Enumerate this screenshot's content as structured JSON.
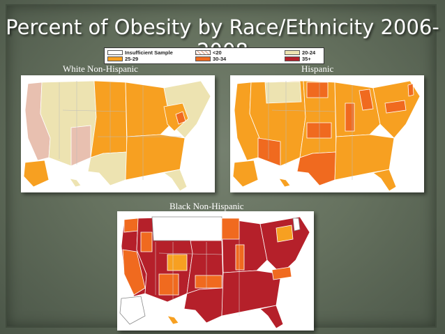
{
  "title": "Percent of Obesity by Race/Ethnicity 2006-2008",
  "legend": [
    {
      "label": "Insufficient Sample",
      "color": "#ffffff",
      "pattern": "solid"
    },
    {
      "label": "<20",
      "color": "#e8c0b0",
      "pattern": "hatch"
    },
    {
      "label": "20-24",
      "color": "#ede3b1",
      "pattern": "solid"
    },
    {
      "label": "25-29",
      "color": "#f7a021",
      "pattern": "solid"
    },
    {
      "label": "30-34",
      "color": "#f06a1f",
      "pattern": "solid"
    },
    {
      "label": "35+",
      "color": "#b5202a",
      "pattern": "solid"
    }
  ],
  "maps": {
    "white": {
      "label": "White Non-Hispanic"
    },
    "hispanic": {
      "label": "Hispanic"
    },
    "black": {
      "label": "Black Non-Hispanic"
    }
  }
}
